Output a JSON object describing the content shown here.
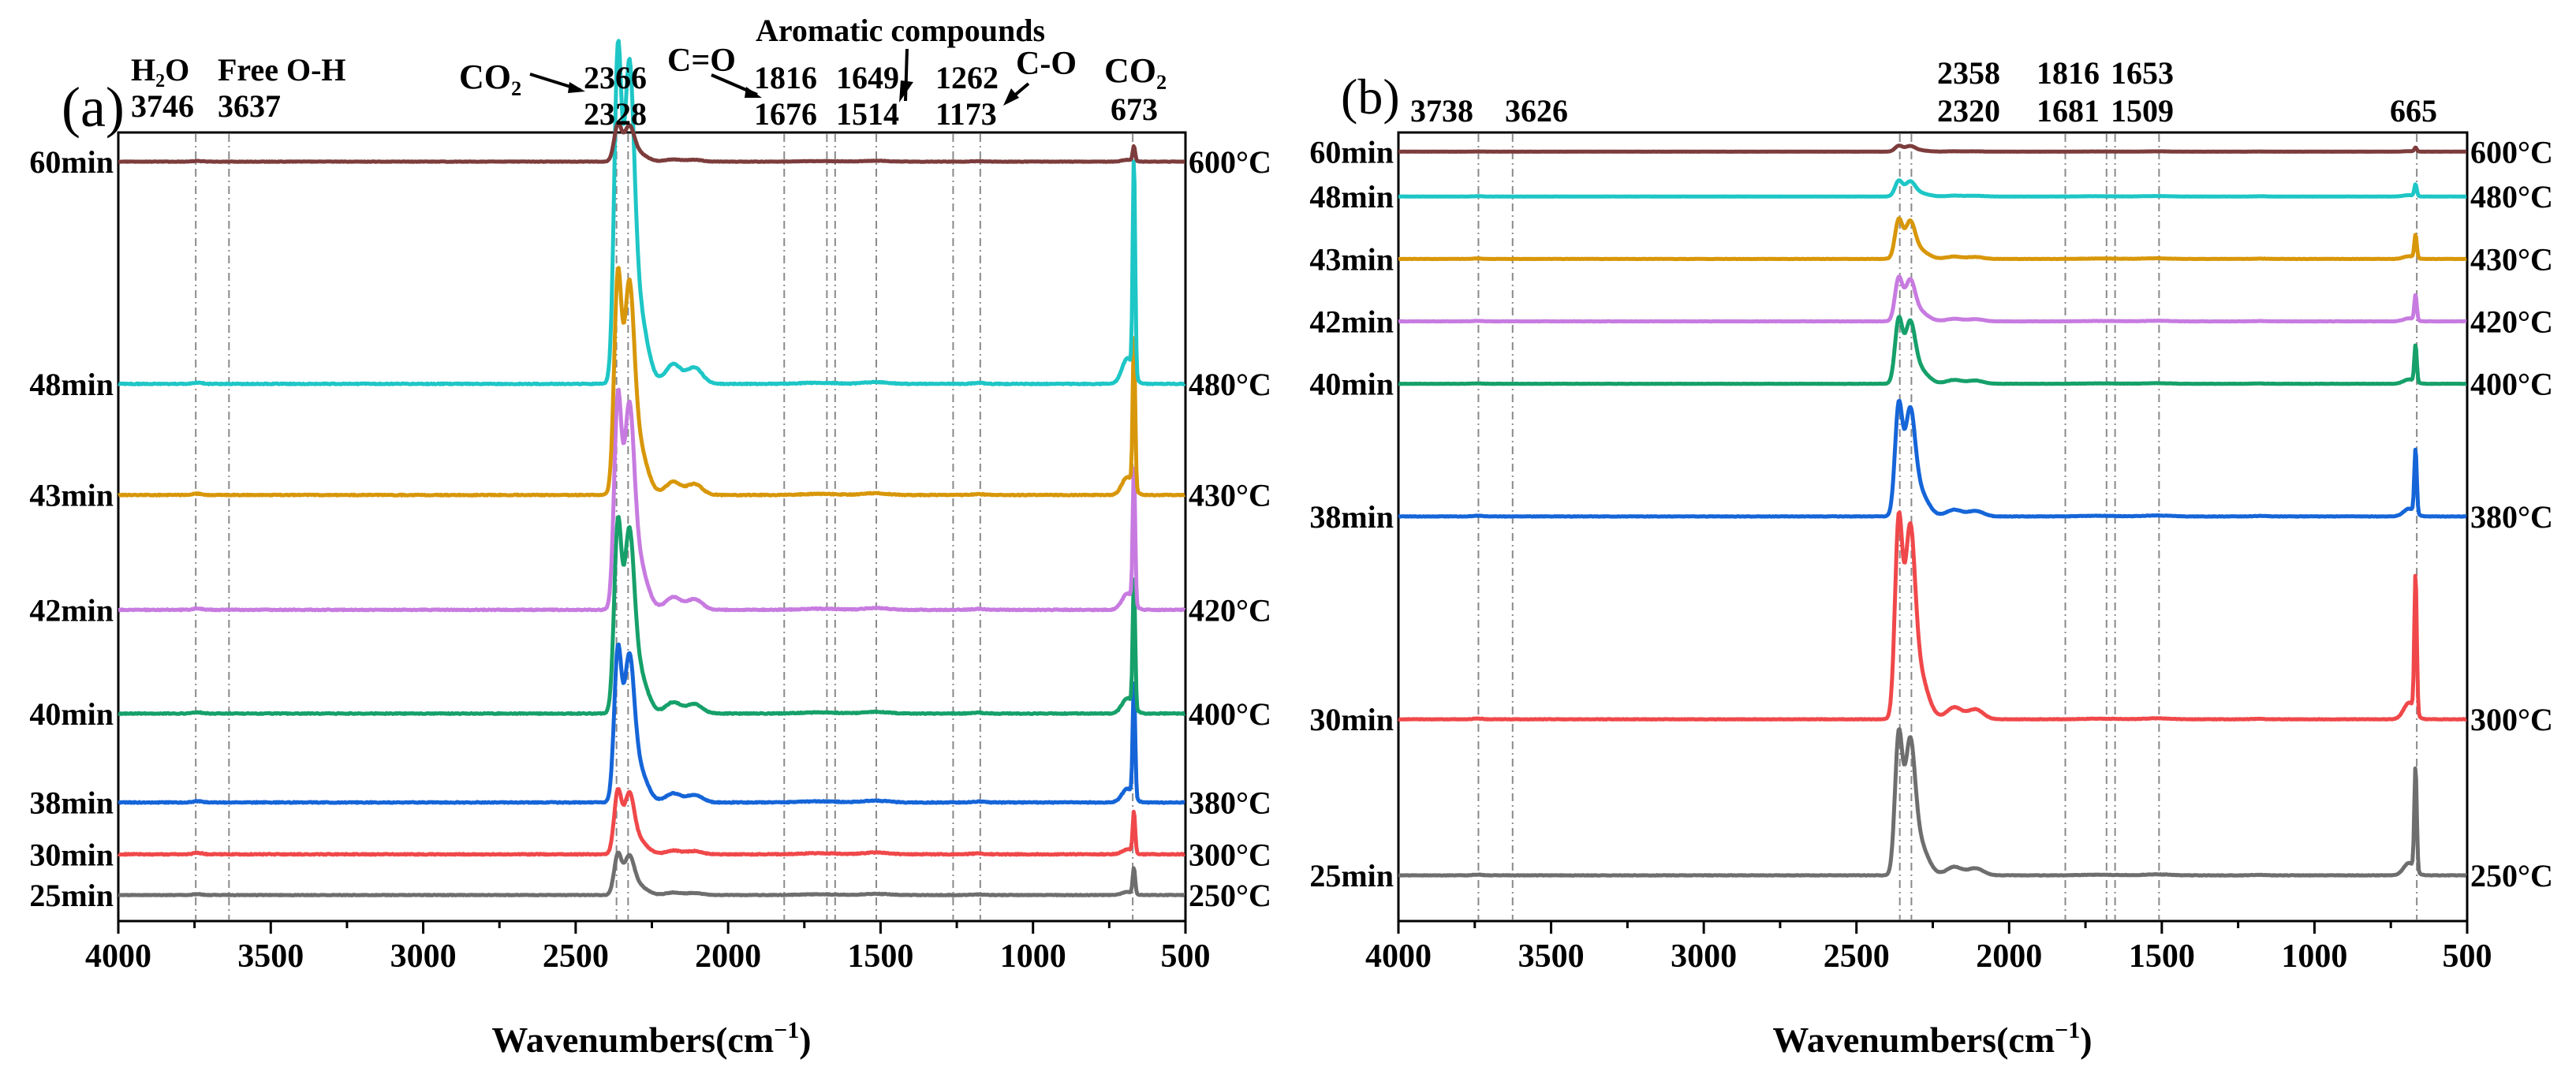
{
  "chart_data": [
    {
      "type": "line",
      "panel_label": "(a)",
      "xlabel_main": "Wavenumbers(cm",
      "xlabel_sup": "−1",
      "xlabel_close": ")",
      "xlim": [
        4000,
        500
      ],
      "x_ticks": [
        "4000",
        "3500",
        "3000",
        "2500",
        "2000",
        "1500",
        "1000",
        "500"
      ],
      "x_tick_values": [
        4000,
        3500,
        3000,
        2500,
        2000,
        1500,
        1000,
        500
      ],
      "reference_lines": [
        3746,
        3637,
        2366,
        2328,
        1816,
        1676,
        1649,
        1514,
        1262,
        1173,
        673
      ],
      "annotations": {
        "h2o": "H₂O",
        "h2o_value": "3746",
        "free_oh": "Free O-H",
        "free_oh_value": "3637",
        "co2_left": "CO₂",
        "co2_left_top": "2366",
        "co2_left_bottom": "2328",
        "co": "C=O",
        "co_top": "1816",
        "co_bottom": "1676",
        "aromatic": "Aromatic compounds",
        "aromatic_top": "1649",
        "aromatic_bottom": "1514",
        "c_o": "C-O",
        "c_o_top": "1262",
        "c_o_bottom": "1173",
        "co2_right": "CO₂",
        "co2_right_value": "673"
      },
      "series": [
        {
          "time": "25min",
          "temp": "250°C",
          "color": "#6e6e6e",
          "baseline": 0.0,
          "peak_co2": 0.55,
          "peak_673": 0.35,
          "noise": 0.02
        },
        {
          "time": "30min",
          "temp": "300°C",
          "color": "#f0484a",
          "baseline": 0.55,
          "peak_co2": 0.85,
          "peak_673": 0.55,
          "noise": 0.03
        },
        {
          "time": "38min",
          "temp": "380°C",
          "color": "#1565d8",
          "baseline": 1.25,
          "peak_co2": 2.05,
          "peak_673": 1.55,
          "noise": 0.03
        },
        {
          "time": "40min",
          "temp": "400°C",
          "color": "#16a06a",
          "baseline": 2.45,
          "peak_co2": 2.55,
          "peak_673": 1.75,
          "noise": 0.03
        },
        {
          "time": "42min",
          "temp": "420°C",
          "color": "#c77be0",
          "baseline": 3.85,
          "peak_co2": 2.85,
          "peak_673": 1.85,
          "noise": 0.03
        },
        {
          "time": "43min",
          "temp": "430°C",
          "color": "#d8970a",
          "baseline": 5.4,
          "peak_co2": 2.95,
          "peak_673": 2.05,
          "noise": 0.03
        },
        {
          "time": "48min",
          "temp": "480°C",
          "color": "#1ec6c6",
          "baseline": 6.9,
          "peak_co2": 4.45,
          "peak_673": 2.9,
          "noise": 0.03
        },
        {
          "time": "60min",
          "temp": "600°C",
          "color": "#7d3c3c",
          "baseline": 9.9,
          "peak_co2": 0.5,
          "peak_673": 0.2,
          "noise": 0.015
        }
      ]
    },
    {
      "type": "line",
      "panel_label": "(b)",
      "xlabel_main": "Wavenumbers(cm",
      "xlabel_sup": "−1",
      "xlabel_close": ")",
      "xlim": [
        4000,
        500
      ],
      "x_ticks": [
        "4000",
        "3500",
        "3000",
        "2500",
        "2000",
        "1500",
        "1000",
        "500"
      ],
      "x_tick_values": [
        4000,
        3500,
        3000,
        2500,
        2000,
        1500,
        1000,
        500
      ],
      "reference_lines": [
        3738,
        3626,
        2358,
        2320,
        1816,
        1681,
        1653,
        1509,
        665
      ],
      "annotations": {
        "v3738": "3738",
        "v3626": "3626",
        "v2358": "2358",
        "v2320": "2320",
        "v1816": "1816",
        "v1681": "1681",
        "v1653": "1653",
        "v1509": "1509",
        "v665": "665"
      },
      "series": [
        {
          "time": "25min",
          "temp": "250°C",
          "color": "#6e6e6e",
          "baseline": 0.0,
          "peak_co2": 3.6,
          "peak_673": 2.65,
          "noise": 0.03
        },
        {
          "time": "30min",
          "temp": "300°C",
          "color": "#f0484a",
          "baseline": 4.0,
          "peak_co2": 5.1,
          "peak_673": 3.55,
          "noise": 0.03
        },
        {
          "time": "38min",
          "temp": "380°C",
          "color": "#1565d8",
          "baseline": 9.2,
          "peak_co2": 2.85,
          "peak_673": 1.65,
          "noise": 0.03
        },
        {
          "time": "40min",
          "temp": "400°C",
          "color": "#16a06a",
          "baseline": 12.6,
          "peak_co2": 1.65,
          "peak_673": 0.95,
          "noise": 0.02
        },
        {
          "time": "42min",
          "temp": "420°C",
          "color": "#c77be0",
          "baseline": 14.2,
          "peak_co2": 1.1,
          "peak_673": 0.65,
          "noise": 0.02
        },
        {
          "time": "43min",
          "temp": "430°C",
          "color": "#d8970a",
          "baseline": 15.8,
          "peak_co2": 1.0,
          "peak_673": 0.6,
          "noise": 0.02
        },
        {
          "time": "48min",
          "temp": "480°C",
          "color": "#1ec6c6",
          "baseline": 17.4,
          "peak_co2": 0.4,
          "peak_673": 0.3,
          "noise": 0.015
        },
        {
          "time": "60min",
          "temp": "600°C",
          "color": "#7d3c3c",
          "baseline": 18.55,
          "peak_co2": 0.15,
          "peak_673": 0.1,
          "noise": 0.01
        }
      ]
    }
  ]
}
